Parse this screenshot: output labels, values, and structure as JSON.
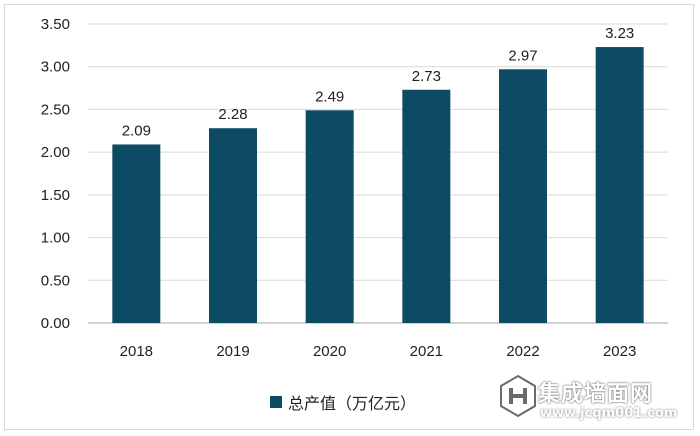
{
  "chart_data": {
    "type": "bar",
    "categories": [
      "2018",
      "2019",
      "2020",
      "2021",
      "2022",
      "2023"
    ],
    "series": [
      {
        "name": "总产值（万亿元）",
        "values": [
          2.09,
          2.28,
          2.49,
          2.73,
          2.97,
          3.23
        ]
      }
    ],
    "data_labels": [
      "2.09",
      "2.28",
      "2.49",
      "2.73",
      "2.97",
      "3.23"
    ],
    "yticks": [
      "0.00",
      "0.50",
      "1.00",
      "1.50",
      "2.00",
      "2.50",
      "3.00",
      "3.50"
    ],
    "ylim": [
      0,
      3.5
    ],
    "grid": true,
    "legend_position": "bottom",
    "bar_color": "#0d4a63"
  },
  "watermark": {
    "brand": "集成墙面网",
    "url": "www.jcqm001.com"
  }
}
